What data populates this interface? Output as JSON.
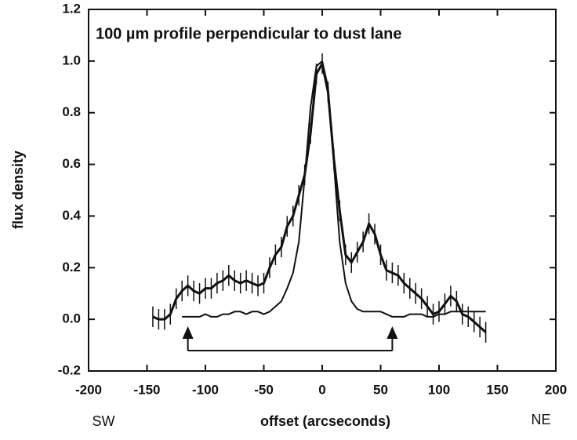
{
  "chart_data": {
    "type": "line",
    "title": "100 µm profile perpendicular to dust lane",
    "x_label": "offset (arcseconds)",
    "y_label": "flux density",
    "x_left_label": "SW",
    "x_right_label": "NE",
    "x": [
      -145,
      -140,
      -135,
      -130,
      -125,
      -120,
      -115,
      -110,
      -105,
      -100,
      -95,
      -90,
      -85,
      -80,
      -75,
      -70,
      -65,
      -60,
      -55,
      -50,
      -45,
      -40,
      -35,
      -30,
      -25,
      -20,
      -15,
      -10,
      -5,
      0,
      5,
      10,
      15,
      20,
      25,
      30,
      35,
      40,
      45,
      50,
      55,
      60,
      65,
      70,
      75,
      80,
      85,
      90,
      95,
      100,
      105,
      110,
      115,
      120,
      125,
      130,
      135,
      140
    ],
    "series": [
      {
        "color": "#111111",
        "error": 0.04,
        "values": [
          0.01,
          0.0,
          0.0,
          0.02,
          0.08,
          0.11,
          0.13,
          0.11,
          0.1,
          0.12,
          0.12,
          0.14,
          0.15,
          0.17,
          0.15,
          0.14,
          0.15,
          0.14,
          0.13,
          0.14,
          0.2,
          0.25,
          0.28,
          0.36,
          0.4,
          0.48,
          0.56,
          0.72,
          0.95,
          0.99,
          0.88,
          0.62,
          0.42,
          0.25,
          0.22,
          0.26,
          0.3,
          0.37,
          0.33,
          0.25,
          0.19,
          0.18,
          0.17,
          0.14,
          0.12,
          0.1,
          0.08,
          0.05,
          0.02,
          0.03,
          0.06,
          0.09,
          0.07,
          0.02,
          0.01,
          -0.01,
          -0.03,
          -0.05
        ]
      },
      {
        "color": "#111111",
        "values": [
          null,
          null,
          null,
          null,
          null,
          0.01,
          0.01,
          0.01,
          0.01,
          0.02,
          0.01,
          0.01,
          0.02,
          0.02,
          0.03,
          0.03,
          0.02,
          0.03,
          0.03,
          0.02,
          0.03,
          0.05,
          0.07,
          0.12,
          0.18,
          0.3,
          0.55,
          0.82,
          0.98,
          1.0,
          0.9,
          0.6,
          0.3,
          0.14,
          0.07,
          0.04,
          0.03,
          0.03,
          0.03,
          0.03,
          0.02,
          0.01,
          0.01,
          0.01,
          0.02,
          0.02,
          0.02,
          0.01,
          0.01,
          0.02,
          0.02,
          0.03,
          0.03,
          0.03,
          0.03,
          0.03,
          0.03,
          0.03
        ]
      }
    ],
    "arrows_x": [
      -115,
      60
    ],
    "xlim": [
      -200,
      200
    ],
    "xticks": [
      -200,
      -150,
      -100,
      -50,
      0,
      50,
      100,
      150,
      200
    ],
    "ylim": [
      -0.2,
      1.2
    ],
    "yticks": [
      -0.2,
      {
        "value": 0,
        "label": "0.0"
      },
      0.2,
      0.4,
      0.6,
      0.8,
      {
        "value": 1,
        "label": "1.0"
      },
      1.2
    ]
  }
}
